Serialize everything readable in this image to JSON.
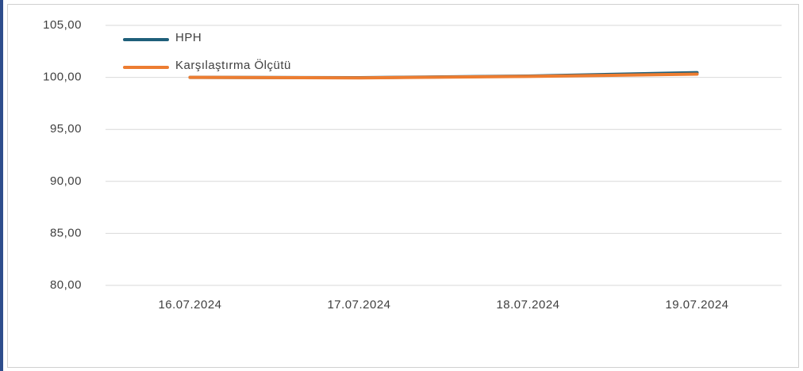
{
  "chart_data": {
    "type": "line",
    "categories": [
      "16.07.2024",
      "17.07.2024",
      "18.07.2024",
      "19.07.2024"
    ],
    "series": [
      {
        "name": "HPH",
        "color": "#1f5f7a",
        "values": [
          100.0,
          99.97,
          100.12,
          100.46
        ]
      },
      {
        "name": "Karşılaştırma Ölçütü",
        "color": "#ed7d31",
        "values": [
          100.0,
          99.95,
          100.09,
          100.31
        ]
      }
    ],
    "ylim": [
      80,
      105
    ],
    "yticks": [
      {
        "value": 80,
        "label": "80,00"
      },
      {
        "value": 85,
        "label": "85,00"
      },
      {
        "value": 90,
        "label": "90,00"
      },
      {
        "value": 95,
        "label": "95,00"
      },
      {
        "value": 100,
        "label": "100,00"
      },
      {
        "value": 105,
        "label": "105,00"
      }
    ],
    "grid": true,
    "legend": "top-left"
  }
}
